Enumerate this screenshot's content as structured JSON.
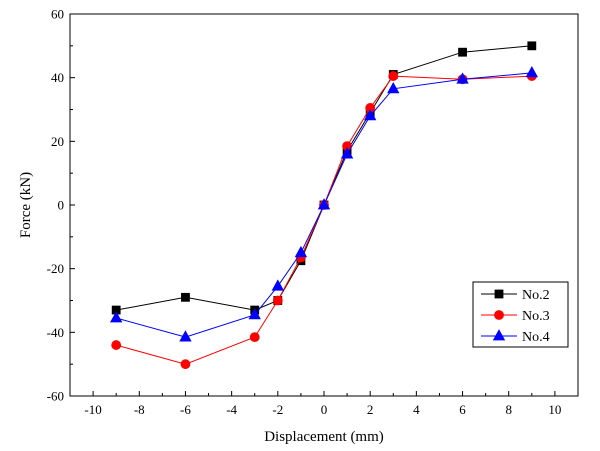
{
  "chart_data": {
    "type": "line",
    "title": "",
    "xlabel": "Displacement (mm)",
    "ylabel": "Force (kN)",
    "xlim": [
      -11,
      11
    ],
    "ylim": [
      -60,
      60
    ],
    "xticks": [
      -10,
      -8,
      -6,
      -4,
      -2,
      0,
      2,
      4,
      6,
      8,
      10
    ],
    "yticks": [
      -60,
      -40,
      -20,
      0,
      20,
      40,
      60
    ],
    "legend_position": "lower-right",
    "series": [
      {
        "name": "No.2",
        "color": "#000000",
        "marker": "square",
        "x": [
          -9,
          -6,
          -3,
          -2,
          -1,
          0,
          1,
          2,
          3,
          6,
          9
        ],
        "y": [
          -33,
          -29,
          -33,
          -30,
          -17.5,
          0,
          17,
          29,
          41,
          48,
          50
        ]
      },
      {
        "name": "No.3",
        "color": "#ff0000",
        "marker": "circle",
        "x": [
          -9,
          -6,
          -3,
          -2,
          -1,
          0,
          1,
          2,
          3,
          6,
          9
        ],
        "y": [
          -44,
          -50,
          -41.5,
          -30,
          -16.5,
          0,
          18.5,
          30.5,
          40.5,
          39.5,
          40.5
        ]
      },
      {
        "name": "No.4",
        "color": "#0000ff",
        "marker": "triangle",
        "x": [
          -9,
          -6,
          -3,
          -2,
          -1,
          0,
          1,
          2,
          3,
          6,
          9
        ],
        "y": [
          -35.5,
          -41.5,
          -34.5,
          -25.5,
          -15,
          0,
          16,
          28,
          36.5,
          39.5,
          41.5
        ]
      }
    ]
  }
}
